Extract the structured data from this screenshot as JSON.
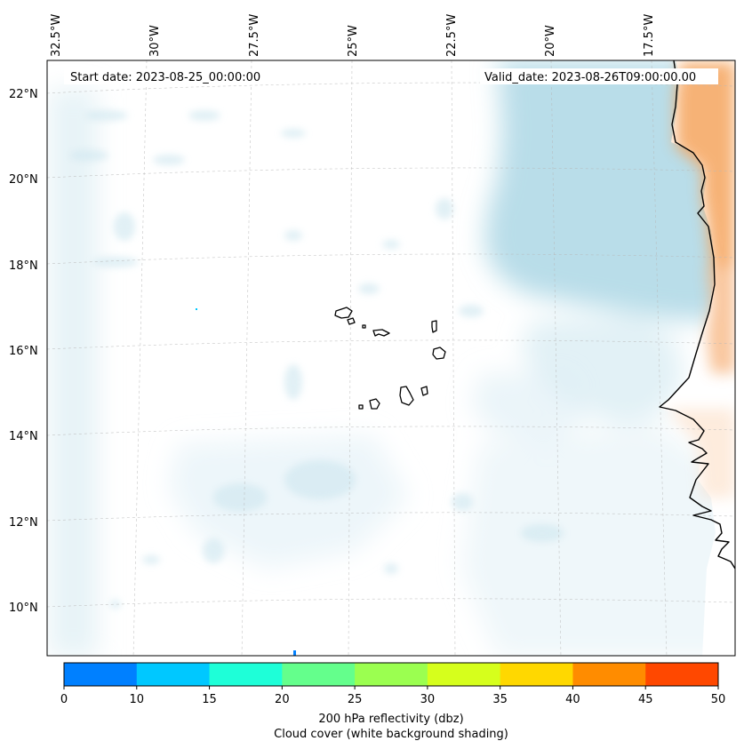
{
  "map": {
    "start_date_label": "Start date: 2023-08-25_00:00:00",
    "valid_date_label": "Valid_date: 2023-08-26T09:00:00.00",
    "longitude_labels": [
      "32.5°W",
      "30°W",
      "27.5°W",
      "25°W",
      "22.5°W",
      "20°W",
      "17.5°W"
    ],
    "latitude_labels": [
      "22°N",
      "20°N",
      "18°N",
      "16°N",
      "14°N",
      "12°N",
      "10°N"
    ],
    "gridlines": true,
    "features": [
      "Cape Verde islands",
      "West African coastline"
    ]
  },
  "colorbar": {
    "ticks": [
      "0",
      "10",
      "15",
      "20",
      "25",
      "30",
      "35",
      "40",
      "45",
      "50"
    ],
    "colors": [
      "#0080ff",
      "#00c8ff",
      "#1effd8",
      "#64ff8c",
      "#9bff50",
      "#d6ff1c",
      "#ffd800",
      "#ff8c00",
      "#ff4800"
    ],
    "label_line1": "200 hPa reflectivity (dbz)",
    "label_line2": "Cloud cover (white background shading)"
  },
  "colors": {
    "cloud_cover": "#a8d4e4",
    "land_orange": "#f5a55f"
  }
}
